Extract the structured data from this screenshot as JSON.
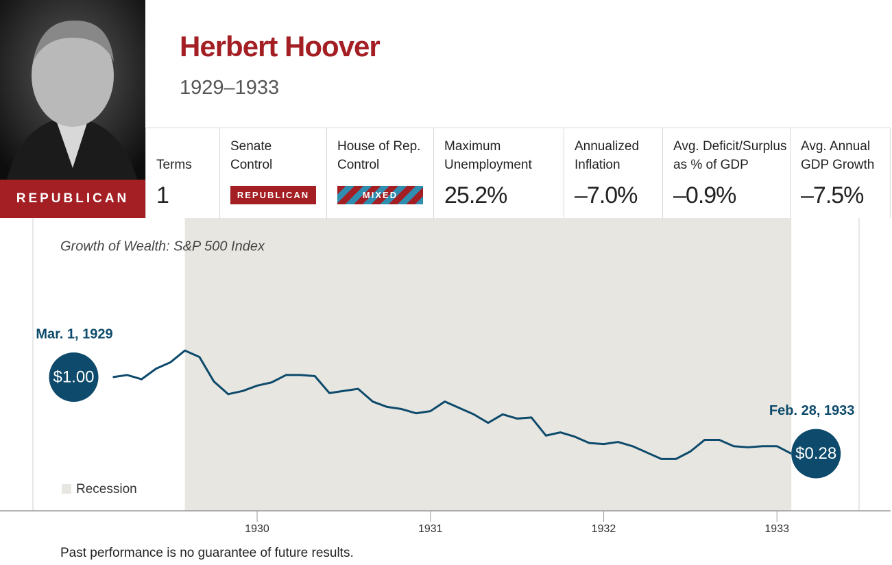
{
  "header": {
    "name": "Herbert Hoover",
    "years": "1929–1933",
    "party": "REPUBLICAN"
  },
  "stats": [
    {
      "label": [
        "Terms"
      ],
      "value": "1"
    },
    {
      "label": [
        "Senate",
        "Control"
      ],
      "badge": "REPUBLICAN"
    },
    {
      "label": [
        "House of Rep.",
        "Control"
      ],
      "badge": "MIXED"
    },
    {
      "label": [
        "Maximum",
        "Unemployment"
      ],
      "value": "25.2%"
    },
    {
      "label": [
        "Annualized",
        "Inflation"
      ],
      "value": "–7.0%"
    },
    {
      "label": [
        "Avg. Deficit/Surplus",
        "as % of GDP"
      ],
      "value": "–0.9%"
    },
    {
      "label": [
        "Avg. Annual",
        "GDP Growth"
      ],
      "value": "–7.5%"
    }
  ],
  "chart_data": {
    "type": "line",
    "title": "Growth of Wealth: S&P 500 Index",
    "color": "#0d4a6b",
    "x": [
      1929.167,
      1929.25,
      1929.333,
      1929.417,
      1929.5,
      1929.583,
      1929.667,
      1929.75,
      1929.833,
      1929.917,
      1930,
      1930.083,
      1930.167,
      1930.25,
      1930.333,
      1930.417,
      1930.5,
      1930.583,
      1930.667,
      1930.75,
      1930.833,
      1930.917,
      1931,
      1931.083,
      1931.167,
      1931.25,
      1931.333,
      1931.417,
      1931.5,
      1931.583,
      1931.667,
      1931.75,
      1931.833,
      1931.917,
      1932,
      1932.083,
      1932.167,
      1932.25,
      1932.333,
      1932.417,
      1932.5,
      1932.583,
      1932.667,
      1932.75,
      1932.833,
      1932.917,
      1933,
      1933.083
    ],
    "values": [
      1.0,
      1.02,
      0.98,
      1.08,
      1.14,
      1.25,
      1.19,
      0.96,
      0.84,
      0.87,
      0.92,
      0.95,
      1.02,
      1.02,
      1.01,
      0.85,
      0.87,
      0.89,
      0.77,
      0.72,
      0.7,
      0.66,
      0.68,
      0.77,
      0.71,
      0.65,
      0.57,
      0.65,
      0.61,
      0.62,
      0.45,
      0.48,
      0.44,
      0.38,
      0.37,
      0.39,
      0.35,
      0.29,
      0.23,
      0.23,
      0.3,
      0.41,
      0.41,
      0.35,
      0.34,
      0.35,
      0.35,
      0.28
    ],
    "value_labels": [
      "$1.00",
      null,
      null,
      null,
      null,
      null,
      null,
      null,
      null,
      null,
      null,
      null,
      null,
      null,
      null,
      null,
      null,
      null,
      null,
      null,
      null,
      null,
      null,
      null,
      null,
      null,
      null,
      null,
      null,
      null,
      null,
      null,
      null,
      null,
      null,
      null,
      null,
      null,
      null,
      null,
      null,
      null,
      null,
      null,
      null,
      null,
      null,
      "$0.28"
    ],
    "annotations": [
      "Mar. 1, 1929",
      "Feb. 28, 1933"
    ],
    "recession": {
      "name": "Recession",
      "color": "#e8e6e1",
      "range": [
        1929.583,
        1933.083
      ]
    },
    "xlim": [
      1928.706,
      1933.474
    ],
    "xticks": [
      1930,
      1931,
      1932,
      1933
    ],
    "ylim": [
      -0.258,
      2.497
    ]
  },
  "footnote": "Past performance is no guarantee of future results."
}
